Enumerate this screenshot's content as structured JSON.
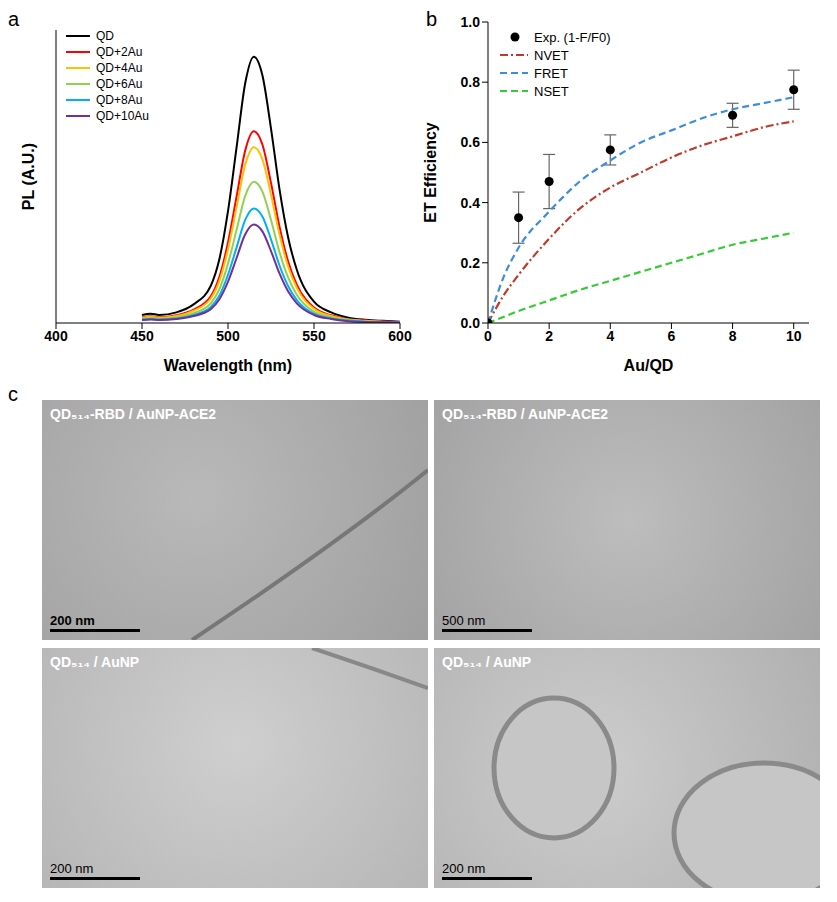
{
  "chart_data": [
    {
      "panel_label": "a",
      "type": "line",
      "x_label": "Wavelength (nm)",
      "y_label": "PL (A.U.)",
      "x": [
        450,
        455,
        460,
        470,
        480,
        490,
        495,
        500,
        505,
        510,
        515,
        520,
        525,
        530,
        535,
        540,
        550,
        560,
        570,
        580,
        590,
        600
      ],
      "series": [
        {
          "name": "QD",
          "color": "#000000",
          "values": [
            0.03,
            0.035,
            0.03,
            0.04,
            0.07,
            0.14,
            0.24,
            0.42,
            0.66,
            0.9,
            1.0,
            0.93,
            0.73,
            0.5,
            0.32,
            0.2,
            0.08,
            0.04,
            0.02,
            0.012,
            0.008,
            0.005
          ]
        },
        {
          "name": "QD+2Au",
          "color": "#ff0000",
          "values": [
            0.022,
            0.025,
            0.022,
            0.029,
            0.05,
            0.1,
            0.173,
            0.302,
            0.475,
            0.648,
            0.72,
            0.67,
            0.526,
            0.36,
            0.23,
            0.144,
            0.058,
            0.029,
            0.014,
            0.009,
            0.006,
            0.004
          ]
        },
        {
          "name": "QD+4Au",
          "color": "#ffc000",
          "values": [
            0.02,
            0.023,
            0.02,
            0.026,
            0.046,
            0.092,
            0.158,
            0.277,
            0.436,
            0.594,
            0.66,
            0.614,
            0.482,
            0.33,
            0.211,
            0.132,
            0.053,
            0.026,
            0.013,
            0.008,
            0.005,
            0.003
          ]
        },
        {
          "name": "QD+6Au",
          "color": "#92d050",
          "values": [
            0.016,
            0.019,
            0.016,
            0.021,
            0.037,
            0.074,
            0.127,
            0.223,
            0.35,
            0.477,
            0.53,
            0.493,
            0.387,
            0.265,
            0.17,
            0.106,
            0.042,
            0.021,
            0.011,
            0.006,
            0.004,
            0.003
          ]
        },
        {
          "name": "QD+8Au",
          "color": "#00b0f0",
          "values": [
            0.013,
            0.015,
            0.013,
            0.017,
            0.03,
            0.06,
            0.103,
            0.181,
            0.284,
            0.387,
            0.43,
            0.4,
            0.314,
            0.215,
            0.138,
            0.086,
            0.034,
            0.017,
            0.009,
            0.005,
            0.003,
            0.002
          ]
        },
        {
          "name": "QD+10Au",
          "color": "#7030a0",
          "values": [
            0.011,
            0.013,
            0.011,
            0.015,
            0.026,
            0.052,
            0.089,
            0.155,
            0.244,
            0.333,
            0.37,
            0.344,
            0.27,
            0.185,
            0.118,
            0.074,
            0.03,
            0.015,
            0.007,
            0.004,
            0.003,
            0.002
          ]
        }
      ],
      "xlim": [
        400,
        600
      ],
      "xticks": [
        400,
        450,
        500,
        550,
        600
      ],
      "ylim": [
        0,
        1.1
      ],
      "tick_labels": "x",
      "legend": "upper left"
    },
    {
      "panel_label": "b",
      "type": "line",
      "x_label": "Au/QD",
      "y_label": "ET Efficiency",
      "series": [
        {
          "name": "Exp. (1-F/F0)",
          "type": "scatter",
          "marker": "circle",
          "color": "#000000",
          "x": [
            0,
            1,
            2,
            4,
            8,
            10
          ],
          "values": [
            0,
            0.35,
            0.47,
            0.575,
            0.69,
            0.775
          ],
          "error": [
            0,
            0.085,
            0.09,
            0.05,
            0.04,
            0.065
          ]
        },
        {
          "name": "NVET",
          "type": "line",
          "line_style": "dashdot",
          "color": "#c0392b",
          "x": [
            0,
            0.5,
            1,
            2,
            3,
            4,
            5,
            6,
            7,
            8,
            9,
            10
          ],
          "values": [
            0,
            0.09,
            0.16,
            0.28,
            0.38,
            0.45,
            0.5,
            0.55,
            0.59,
            0.62,
            0.65,
            0.67
          ]
        },
        {
          "name": "FRET",
          "type": "line",
          "line_style": "dashed",
          "color": "#3c8ddc",
          "x": [
            0,
            0.5,
            1,
            2,
            3,
            4,
            5,
            6,
            7,
            8,
            9,
            10
          ],
          "values": [
            0,
            0.15,
            0.25,
            0.37,
            0.47,
            0.54,
            0.6,
            0.64,
            0.68,
            0.71,
            0.73,
            0.75
          ]
        },
        {
          "name": "NSET",
          "type": "line",
          "line_style": "dashed",
          "color": "#33cc33",
          "x": [
            0,
            0.5,
            1,
            2,
            3,
            4,
            5,
            6,
            7,
            8,
            9,
            10
          ],
          "values": [
            0,
            0.02,
            0.04,
            0.075,
            0.11,
            0.14,
            0.17,
            0.2,
            0.23,
            0.26,
            0.28,
            0.3
          ]
        }
      ],
      "xlim": [
        0,
        10.5
      ],
      "xticks": [
        0,
        2,
        4,
        6,
        8,
        10
      ],
      "ylim": [
        0,
        1
      ],
      "yticks": [
        {
          "value": 0,
          "label": "0.0"
        },
        {
          "value": 0.2,
          "label": "0.2"
        },
        {
          "value": 0.4,
          "label": "0.4"
        },
        {
          "value": 0.6,
          "label": "0.6"
        },
        {
          "value": 0.8,
          "label": "0.8"
        },
        {
          "value": 1,
          "label": "1.0"
        }
      ],
      "legend": "upper left"
    }
  ],
  "images": {
    "panel_label": "c",
    "items": [
      {
        "label": "QD₅₁₄-RBD / AuNP-ACE2",
        "scale_bar": "200 nm"
      },
      {
        "label": "QD₅₁₄-RBD / AuNP-ACE2",
        "scale_bar": "500 nm"
      },
      {
        "label": "QD₅₁₄ / AuNP",
        "scale_bar": "200 nm"
      },
      {
        "label": "QD₅₁₄ / AuNP",
        "scale_bar": "200 nm"
      }
    ]
  }
}
